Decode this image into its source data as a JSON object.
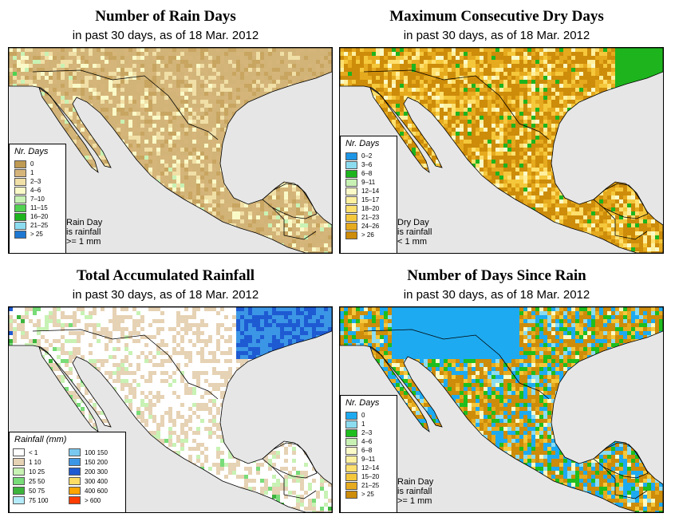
{
  "panels": [
    {
      "title": "Number of Rain Days",
      "subtitle": "in past 30 days, as of  18 Mar. 2012",
      "legend_title": "Nr. Days",
      "legend": [
        {
          "label": "0",
          "color": "#bf9a52"
        },
        {
          "label": "1",
          "color": "#d6b57a"
        },
        {
          "label": "2–3",
          "color": "#f0dfa6"
        },
        {
          "label": "4–6",
          "color": "#fafac8"
        },
        {
          "label": "7–10",
          "color": "#c8f2b4"
        },
        {
          "label": "11–15",
          "color": "#50d250"
        },
        {
          "label": "16–20",
          "color": "#1eb41e"
        },
        {
          "label": "21–25",
          "color": "#8cdcf0"
        },
        {
          "label": "> 25",
          "color": "#1e78d2"
        }
      ],
      "note": [
        "Rain Day",
        "is rainfall",
        ">= 1 mm"
      ],
      "land_palette": [
        "#d2b478",
        "#d6b57a",
        "#c8a560",
        "#f0dfa6",
        "#fafac8",
        "#c8f2b4",
        "#50d250"
      ],
      "weights": [
        0.35,
        0.2,
        0.15,
        0.12,
        0.1,
        0.06,
        0.02
      ]
    },
    {
      "title": "Maximum Consecutive Dry Days",
      "subtitle": "in past 30 days, as of  18 Mar. 2012",
      "legend_title": "Nr. Days",
      "legend": [
        {
          "label": "0–2",
          "color": "#1e96e6"
        },
        {
          "label": "3–6",
          "color": "#8cdcf0"
        },
        {
          "label": "6–8",
          "color": "#1eb41e"
        },
        {
          "label": "9–11",
          "color": "#c8f2b4"
        },
        {
          "label": "12–14",
          "color": "#fafac8"
        },
        {
          "label": "15–17",
          "color": "#fff0a0"
        },
        {
          "label": "18–20",
          "color": "#ffe06e"
        },
        {
          "label": "21–23",
          "color": "#f5c83c"
        },
        {
          "label": "24–26",
          "color": "#e6aa1e"
        },
        {
          "label": "> 26",
          "color": "#cd8c0a"
        }
      ],
      "note": [
        "Dry Day",
        "is rainfall",
        "< 1 mm"
      ],
      "land_palette": [
        "#cd8c0a",
        "#e6aa1e",
        "#f5c83c",
        "#ffe06e",
        "#fff0a0",
        "#fafac8",
        "#1eb41e"
      ],
      "weights": [
        0.42,
        0.22,
        0.13,
        0.08,
        0.06,
        0.05,
        0.04
      ]
    },
    {
      "title": "Total Accumulated Rainfall",
      "subtitle": "in past 30 days, as of  18 Mar. 2012",
      "legend_title": "Rainfall (mm)",
      "legend_left": [
        {
          "label": "< 1",
          "color": "#ffffff"
        },
        {
          "label": "1     10",
          "color": "#e6d2b4"
        },
        {
          "label": "10    25",
          "color": "#c8f2b4"
        },
        {
          "label": "25    50",
          "color": "#78dc78"
        },
        {
          "label": "50    75",
          "color": "#3cb43c"
        },
        {
          "label": "75   100",
          "color": "#b4ebfa"
        }
      ],
      "legend_right": [
        {
          "label": "100   150",
          "color": "#78c8f0"
        },
        {
          "label": "150   200",
          "color": "#3c96e6"
        },
        {
          "label": "200   300",
          "color": "#1e5ad2"
        },
        {
          "label": "300   400",
          "color": "#ffdc64"
        },
        {
          "label": "400   600",
          "color": "#ffa500"
        },
        {
          "label": "> 600",
          "color": "#ff3c00"
        }
      ],
      "land_palette": [
        "#ffffff",
        "#e6d2b4",
        "#c8f2b4",
        "#78dc78",
        "#3cb43c",
        "#3c96e6",
        "#1e5ad2"
      ],
      "weights": [
        0.45,
        0.3,
        0.12,
        0.07,
        0.03,
        0.02,
        0.01
      ]
    },
    {
      "title": "Number of Days Since Rain",
      "subtitle": "in past 30 days, as of  18 Mar. 2012",
      "legend_title": "Nr. Days",
      "legend": [
        {
          "label": "0",
          "color": "#1eaaf0"
        },
        {
          "label": "1",
          "color": "#8cdcf0"
        },
        {
          "label": "2–3",
          "color": "#1ebe1e"
        },
        {
          "label": "4–6",
          "color": "#c8f2b4"
        },
        {
          "label": "6–8",
          "color": "#fafac8"
        },
        {
          "label": "9–11",
          "color": "#fff0a0"
        },
        {
          "label": "12–14",
          "color": "#ffe06e"
        },
        {
          "label": "15–20",
          "color": "#f5c83c"
        },
        {
          "label": "21–25",
          "color": "#e6aa1e"
        },
        {
          "label": "> 25",
          "color": "#cd8c0a"
        }
      ],
      "note": [
        "Rain Day",
        "is rainfall",
        ">= 1 mm"
      ],
      "land_palette": [
        "#cd8c0a",
        "#1eaaf0",
        "#e6aa1e",
        "#1ebe1e",
        "#8cdcf0",
        "#f5c83c",
        "#fafac8"
      ],
      "weights": [
        0.34,
        0.22,
        0.12,
        0.12,
        0.08,
        0.07,
        0.05
      ]
    }
  ]
}
